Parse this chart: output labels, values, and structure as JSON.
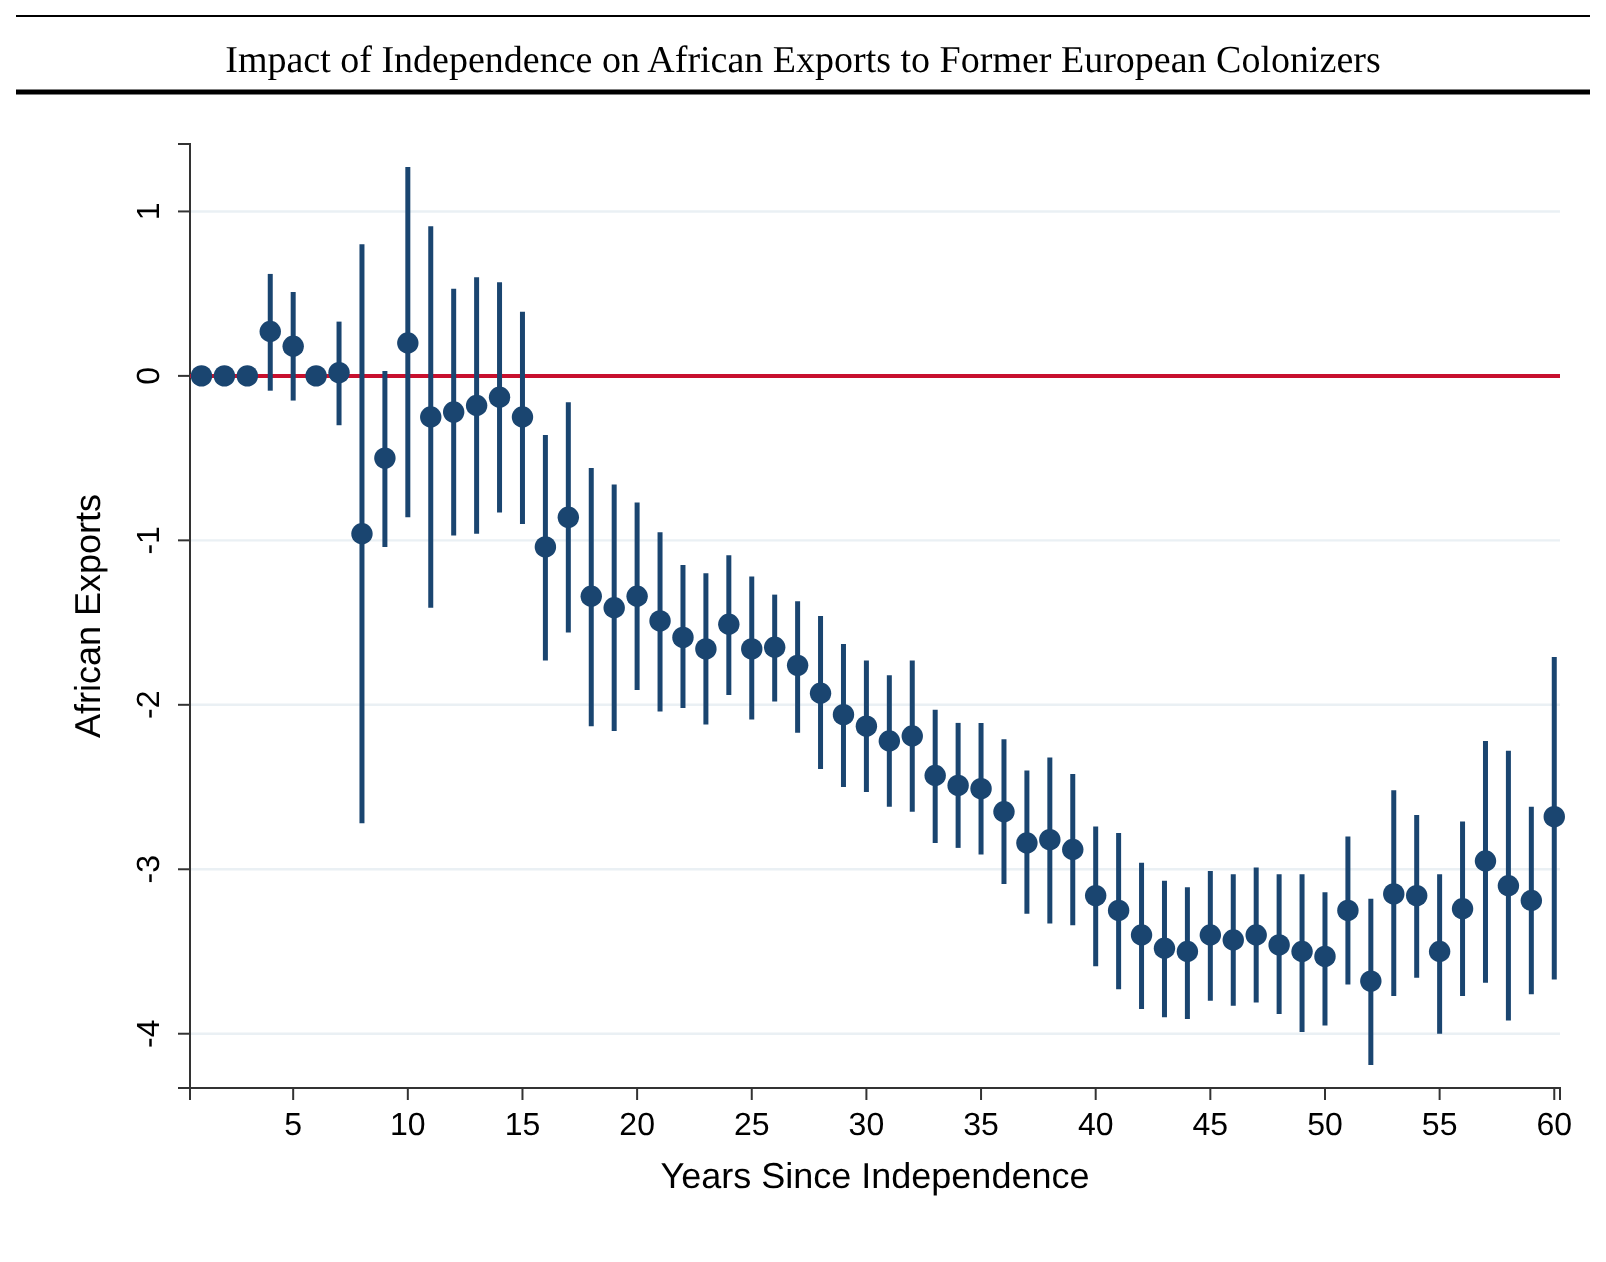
{
  "chart_data": {
    "type": "scatter",
    "title": "Impact of Independence on African Exports to Former European Colonizers",
    "xlabel": "Years Since Independence",
    "ylabel": "African Exports",
    "x": [
      1,
      2,
      3,
      4,
      5,
      6,
      7,
      8,
      9,
      10,
      11,
      12,
      13,
      14,
      15,
      16,
      17,
      18,
      19,
      20,
      21,
      22,
      23,
      24,
      25,
      26,
      27,
      28,
      29,
      30,
      31,
      32,
      33,
      34,
      35,
      36,
      37,
      38,
      39,
      40,
      41,
      42,
      43,
      44,
      45,
      46,
      47,
      48,
      49,
      50,
      51,
      52,
      53,
      54,
      55,
      56,
      57,
      58,
      59,
      60
    ],
    "values": [
      0,
      0,
      0,
      0.27,
      0.18,
      0,
      0.02,
      -0.96,
      -0.5,
      0.2,
      -0.25,
      -0.22,
      -0.18,
      -0.13,
      -0.25,
      -1.04,
      -0.86,
      -1.34,
      -1.41,
      -1.34,
      -1.49,
      -1.59,
      -1.66,
      -1.51,
      -1.66,
      -1.65,
      -1.76,
      -1.93,
      -2.06,
      -2.13,
      -2.22,
      -2.19,
      -2.43,
      -2.49,
      -2.51,
      -2.65,
      -2.84,
      -2.82,
      -2.88,
      -3.16,
      -3.25,
      -3.4,
      -3.48,
      -3.5,
      -3.4,
      -3.43,
      -3.4,
      -3.46,
      -3.5,
      -3.53,
      -3.25,
      -3.68,
      -3.15,
      -3.16,
      -3.5,
      -3.24,
      -2.95,
      -3.1,
      -3.19,
      -2.68
    ],
    "errors": [
      null,
      null,
      null,
      [
        -0.09,
        0.62
      ],
      [
        -0.15,
        0.51
      ],
      null,
      [
        -0.3,
        0.33
      ],
      [
        -2.72,
        0.8
      ],
      [
        -1.04,
        0.03
      ],
      [
        -0.86,
        1.27
      ],
      [
        -1.41,
        0.91
      ],
      [
        -0.97,
        0.53
      ],
      [
        -0.96,
        0.6
      ],
      [
        -0.83,
        0.57
      ],
      [
        -0.9,
        0.39
      ],
      [
        -1.73,
        -0.36
      ],
      [
        -1.56,
        -0.16
      ],
      [
        -2.13,
        -0.56
      ],
      [
        -2.16,
        -0.66
      ],
      [
        -1.91,
        -0.77
      ],
      [
        -2.04,
        -0.95
      ],
      [
        -2.02,
        -1.15
      ],
      [
        -2.12,
        -1.2
      ],
      [
        -1.94,
        -1.09
      ],
      [
        -2.09,
        -1.22
      ],
      [
        -1.98,
        -1.33
      ],
      [
        -2.17,
        -1.37
      ],
      [
        -2.39,
        -1.46
      ],
      [
        -2.5,
        -1.63
      ],
      [
        -2.53,
        -1.73
      ],
      [
        -2.62,
        -1.82
      ],
      [
        -2.65,
        -1.73
      ],
      [
        -2.84,
        -2.03
      ],
      [
        -2.87,
        -2.11
      ],
      [
        -2.91,
        -2.11
      ],
      [
        -3.09,
        -2.21
      ],
      [
        -3.27,
        -2.4
      ],
      [
        -3.33,
        -2.32
      ],
      [
        -3.34,
        -2.42
      ],
      [
        -3.59,
        -2.74
      ],
      [
        -3.73,
        -2.78
      ],
      [
        -3.85,
        -2.96
      ],
      [
        -3.9,
        -3.07
      ],
      [
        -3.91,
        -3.11
      ],
      [
        -3.8,
        -3.01
      ],
      [
        -3.83,
        -3.03
      ],
      [
        -3.81,
        -2.99
      ],
      [
        -3.88,
        -3.03
      ],
      [
        -3.99,
        -3.03
      ],
      [
        -3.95,
        -3.14
      ],
      [
        -3.7,
        -2.8
      ],
      [
        -4.19,
        -3.18
      ],
      [
        -3.77,
        -2.52
      ],
      [
        -3.66,
        -2.67
      ],
      [
        -4.0,
        -3.03
      ],
      [
        -3.77,
        -2.71
      ],
      [
        -3.69,
        -2.22
      ],
      [
        -3.92,
        -2.28
      ],
      [
        -3.76,
        -2.62
      ],
      [
        -3.67,
        -1.71
      ]
    ],
    "color": "#1a4570",
    "marker": "circle",
    "xlim": [
      0.5,
      60.25
    ],
    "xticks": [
      5,
      10,
      15,
      20,
      25,
      30,
      35,
      40,
      45,
      50,
      55,
      60
    ],
    "ylim": [
      -4.33,
      1.41
    ],
    "yticks": [
      -4,
      -3,
      -2,
      -1,
      0,
      1
    ],
    "grid": "y",
    "ref_lines": [
      {
        "axis": "y",
        "value": 0,
        "color": "#c8102e"
      }
    ]
  }
}
